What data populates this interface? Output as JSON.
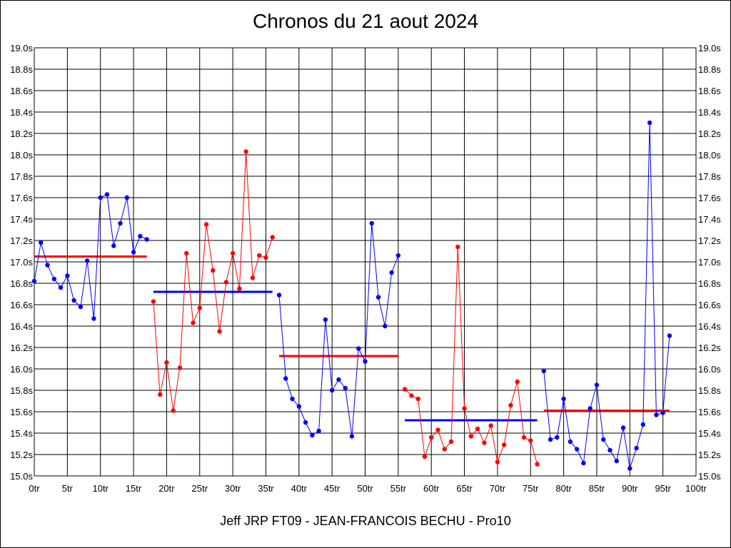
{
  "chart_data": {
    "type": "line",
    "title": "Chronos du 21 aout 2024",
    "footer": "Jeff JRP FT09 - JEAN-FRANCOIS BECHU - Pro10",
    "xlim": [
      0,
      100
    ],
    "ylim": [
      15.0,
      19.0
    ],
    "grid": true,
    "x_ticks": [
      0,
      5,
      10,
      15,
      20,
      25,
      30,
      35,
      40,
      45,
      50,
      55,
      60,
      65,
      70,
      75,
      80,
      85,
      90,
      95,
      100
    ],
    "x_tick_labels": [
      "0tr",
      "5tr",
      "10tr",
      "15tr",
      "20tr",
      "25tr",
      "30tr",
      "35tr",
      "40tr",
      "45tr",
      "50tr",
      "55tr",
      "60tr",
      "65tr",
      "70tr",
      "75tr",
      "80tr",
      "85tr",
      "90tr",
      "95tr",
      "100tr"
    ],
    "y_ticks": [
      15.0,
      15.2,
      15.4,
      15.6,
      15.8,
      16.0,
      16.2,
      16.4,
      16.6,
      16.8,
      17.0,
      17.2,
      17.4,
      17.6,
      17.8,
      18.0,
      18.2,
      18.4,
      18.6,
      18.8,
      19.0
    ],
    "y_tick_labels": [
      "15.0s",
      "15.2s",
      "15.4s",
      "15.6s",
      "15.8s",
      "16.0s",
      "16.2s",
      "16.4s",
      "16.6s",
      "16.8s",
      "17.0s",
      "17.2s",
      "17.4s",
      "17.6s",
      "17.8s",
      "18.0s",
      "18.2s",
      "18.4s",
      "18.6s",
      "18.8s",
      "19.0s"
    ],
    "series": [
      {
        "color": "#0000ff",
        "x": [
          0,
          1,
          2,
          3,
          4,
          5,
          6,
          7,
          8,
          9,
          10,
          11,
          12,
          13,
          14,
          15,
          16,
          17
        ],
        "y": [
          16.82,
          17.18,
          16.97,
          16.84,
          16.76,
          16.87,
          16.64,
          16.58,
          17.01,
          16.47,
          17.6,
          17.63,
          17.15,
          17.36,
          17.6,
          17.09,
          17.24,
          17.21
        ]
      },
      {
        "color": "#ff0000",
        "x": [
          18,
          19,
          20,
          21,
          22,
          23,
          24,
          25,
          26,
          27,
          28,
          29,
          30,
          31,
          32,
          33,
          34,
          35,
          36
        ],
        "y": [
          16.63,
          15.76,
          16.06,
          15.61,
          16.01,
          17.08,
          16.43,
          16.57,
          17.35,
          16.92,
          16.35,
          16.81,
          17.08,
          16.75,
          18.03,
          16.85,
          17.06,
          17.04,
          17.23
        ]
      },
      {
        "color": "#0000ff",
        "x": [
          37,
          38,
          39,
          40,
          41,
          42,
          43,
          44,
          45,
          46,
          47,
          48,
          49,
          50,
          51,
          52,
          53,
          54,
          55
        ],
        "y": [
          16.69,
          15.91,
          15.72,
          15.65,
          15.5,
          15.38,
          15.42,
          16.46,
          15.8,
          15.9,
          15.82,
          15.37,
          16.19,
          16.07,
          17.36,
          16.67,
          16.4,
          16.9,
          17.06
        ]
      },
      {
        "color": "#ff0000",
        "x": [
          56,
          57,
          58,
          59,
          60,
          61,
          62,
          63,
          64,
          65,
          66,
          67,
          68,
          69,
          70,
          71,
          72,
          73,
          74,
          75,
          76
        ],
        "y": [
          15.81,
          15.75,
          15.72,
          15.18,
          15.36,
          15.43,
          15.25,
          15.32,
          17.14,
          15.63,
          15.37,
          15.44,
          15.31,
          15.47,
          15.13,
          15.29,
          15.66,
          15.88,
          15.36,
          15.33,
          15.11
        ]
      },
      {
        "color": "#0000ff",
        "x": [
          77,
          78,
          79,
          80,
          81,
          82,
          83,
          84,
          85,
          86,
          87,
          88,
          89,
          90,
          91,
          92,
          93,
          94,
          95,
          96
        ],
        "y": [
          15.98,
          15.34,
          15.36,
          15.72,
          15.32,
          15.25,
          15.12,
          15.63,
          15.85,
          15.34,
          15.24,
          15.14,
          15.45,
          15.07,
          15.26,
          15.48,
          18.3,
          15.57,
          15.59,
          16.31
        ]
      }
    ],
    "averages": [
      {
        "color": "#ff0000",
        "x0": 0,
        "x1": 17,
        "y": 17.05
      },
      {
        "color": "#0000ff",
        "x0": 18,
        "x1": 36,
        "y": 16.72
      },
      {
        "color": "#ff0000",
        "x0": 37,
        "x1": 55,
        "y": 16.12
      },
      {
        "color": "#0000ff",
        "x0": 56,
        "x1": 76,
        "y": 15.52
      },
      {
        "color": "#ff0000",
        "x0": 77,
        "x1": 96,
        "y": 15.61
      }
    ]
  }
}
